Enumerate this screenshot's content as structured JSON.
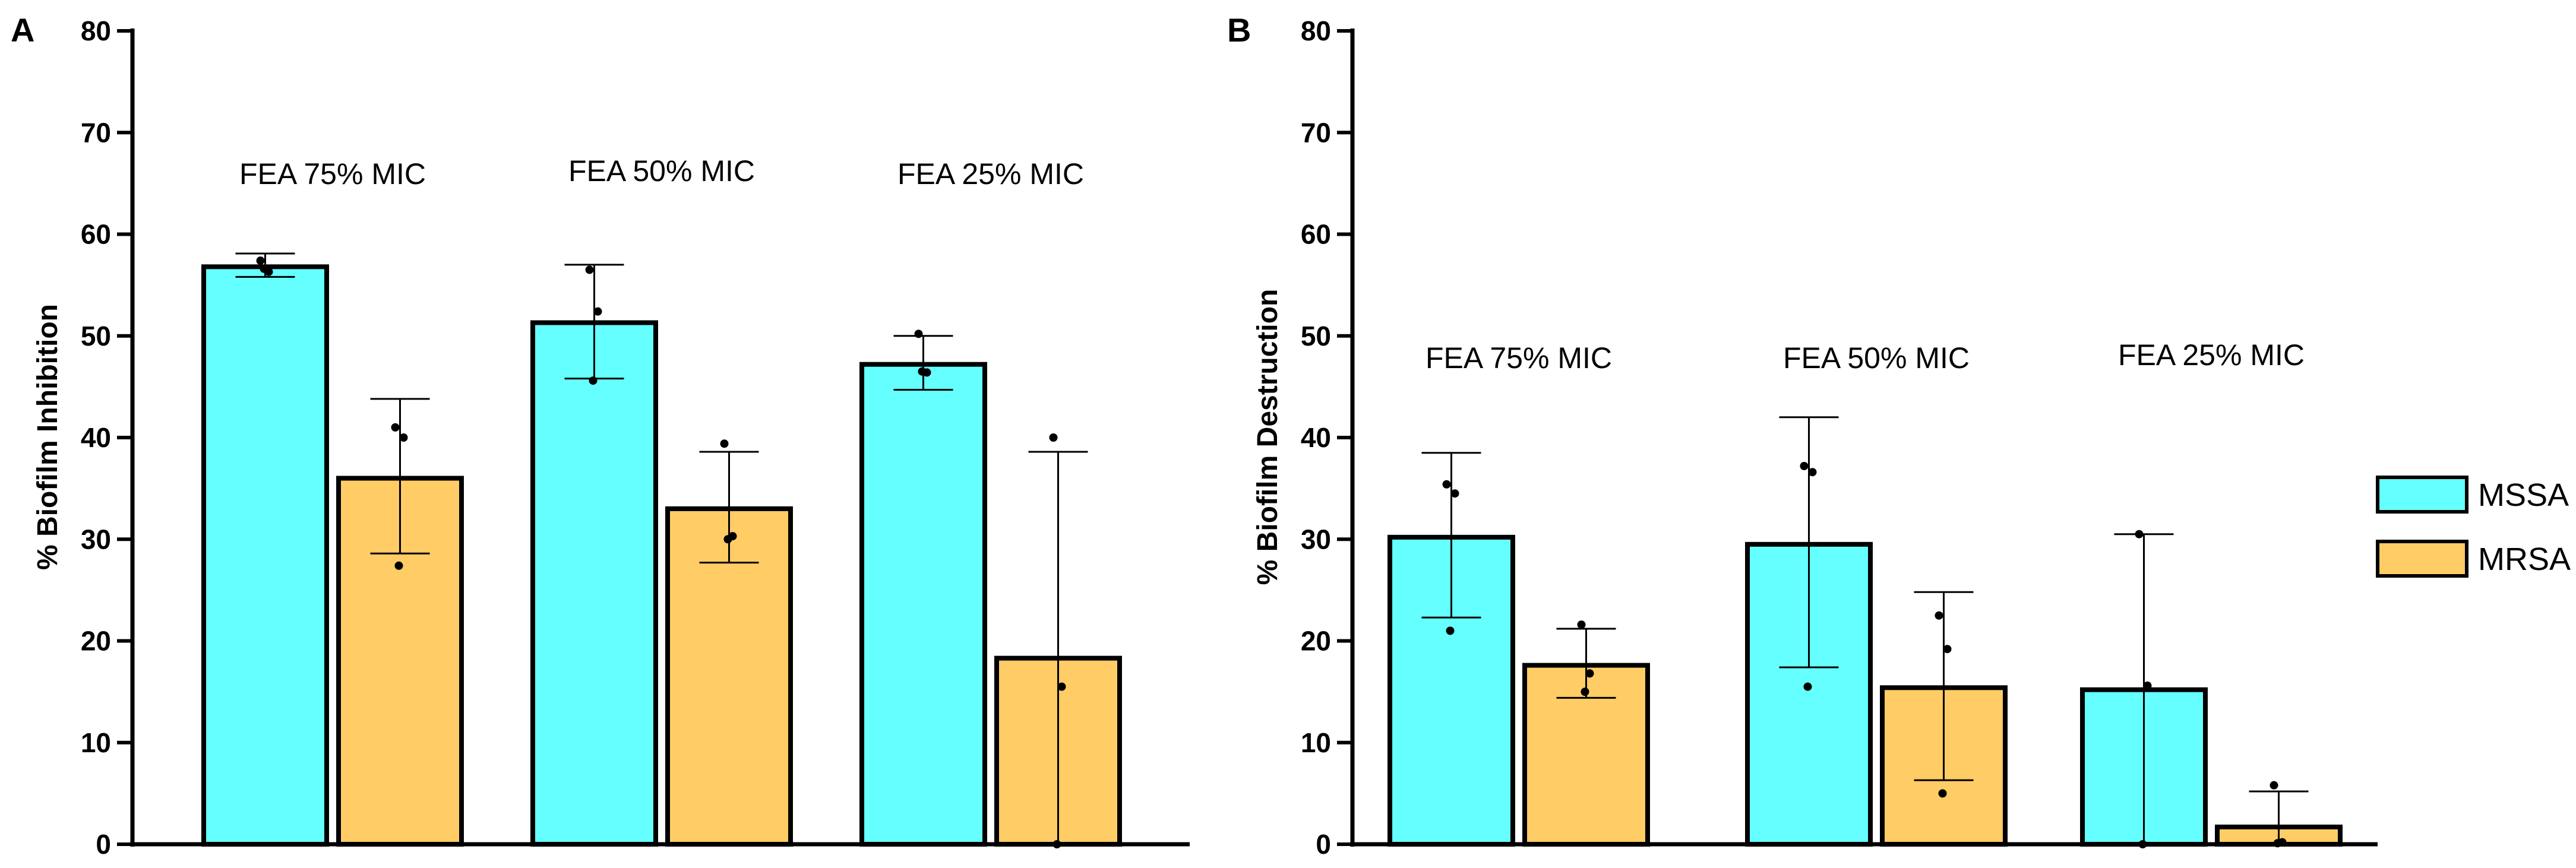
{
  "chart_data": [
    {
      "panel": "A",
      "type": "bar",
      "ylabel": "% Biofilm Inhibition",
      "ylim": [
        0,
        80
      ],
      "yticks": [
        0,
        10,
        20,
        30,
        40,
        50,
        60,
        70,
        80
      ],
      "groups": [
        "FEA 75% MIC",
        "FEA 50% MIC",
        "FEA 25% MIC"
      ],
      "series": [
        {
          "name": "MSSA",
          "color": "#66ffff",
          "values": [
            56.8,
            51.3,
            47.2
          ],
          "err_low": [
            55.8,
            45.8,
            44.7
          ],
          "err_high": [
            58.1,
            57.0,
            50.0
          ],
          "points": [
            [
              57.4,
              56.3,
              56.6
            ],
            [
              56.5,
              52.4,
              45.6
            ],
            [
              50.2,
              46.4,
              46.5
            ]
          ]
        },
        {
          "name": "MRSA",
          "color": "#ffcc66",
          "values": [
            36.0,
            33.0,
            18.3
          ],
          "err_low": [
            28.6,
            27.7,
            0
          ],
          "err_high": [
            43.8,
            38.6,
            38.6
          ],
          "points": [
            [
              41.0,
              40.0,
              27.4
            ],
            [
              39.4,
              30.3,
              30.0
            ],
            [
              40.0,
              15.5,
              0
            ]
          ]
        }
      ]
    },
    {
      "panel": "B",
      "type": "bar",
      "ylabel": "% Biofilm Destruction",
      "ylim": [
        0,
        80
      ],
      "yticks": [
        0,
        10,
        20,
        30,
        40,
        50,
        60,
        70,
        80
      ],
      "groups": [
        "FEA 75% MIC",
        "FEA 50% MIC",
        "FEA 25% MIC"
      ],
      "series": [
        {
          "name": "MSSA",
          "color": "#66ffff",
          "values": [
            30.2,
            29.5,
            15.2
          ],
          "err_low": [
            22.3,
            17.4,
            0
          ],
          "err_high": [
            38.5,
            42.0,
            30.5
          ],
          "points": [
            [
              35.4,
              34.5,
              21.0
            ],
            [
              37.2,
              36.6,
              15.5
            ],
            [
              30.5,
              15.6,
              0
            ]
          ]
        },
        {
          "name": "MRSA",
          "color": "#ffcc66",
          "values": [
            17.6,
            15.4,
            1.7
          ],
          "err_low": [
            14.4,
            6.3,
            0
          ],
          "err_high": [
            21.2,
            24.8,
            5.2
          ],
          "points": [
            [
              21.6,
              16.8,
              15.0
            ],
            [
              22.5,
              19.2,
              5.0
            ],
            [
              5.8,
              0.2,
              0.1
            ]
          ]
        }
      ]
    }
  ],
  "panel_labels": {
    "a": "A",
    "b": "B"
  },
  "axis_titles": {
    "a": "% Biofilm Inhibition",
    "b": "% Biofilm Destruction"
  },
  "legend": [
    {
      "label": "MSSA",
      "color": "#66ffff"
    },
    {
      "label": "MRSA",
      "color": "#ffcc66"
    }
  ]
}
